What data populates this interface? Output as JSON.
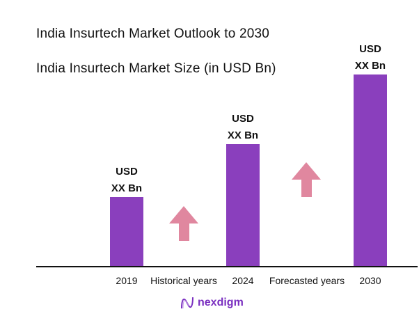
{
  "title": "India Insurtech Market Outlook to 2030",
  "subtitle": "India Insurtech Market Size (in USD Bn)",
  "logo_text": "nexdigm",
  "colors": {
    "bar": "#8a3fbd",
    "arrow": "#e0879f",
    "axis": "#111111",
    "logo": "#7a2fc0"
  },
  "chart_data": {
    "type": "bar",
    "title": "India Insurtech Market Size (in USD Bn)",
    "categories": [
      "2019",
      "2024",
      "2030"
    ],
    "values": [
      100,
      176,
      276
    ],
    "data_labels": [
      [
        "USD",
        "XX Bn"
      ],
      [
        "USD",
        "XX Bn"
      ],
      [
        "USD",
        "XX Bn"
      ]
    ],
    "annotations": [
      {
        "text": "Historical years",
        "icon": "up-arrow-icon"
      },
      {
        "text": "Forecasted years",
        "icon": "up-arrow-icon"
      }
    ],
    "grid": false,
    "xlabel": "",
    "ylabel": ""
  }
}
